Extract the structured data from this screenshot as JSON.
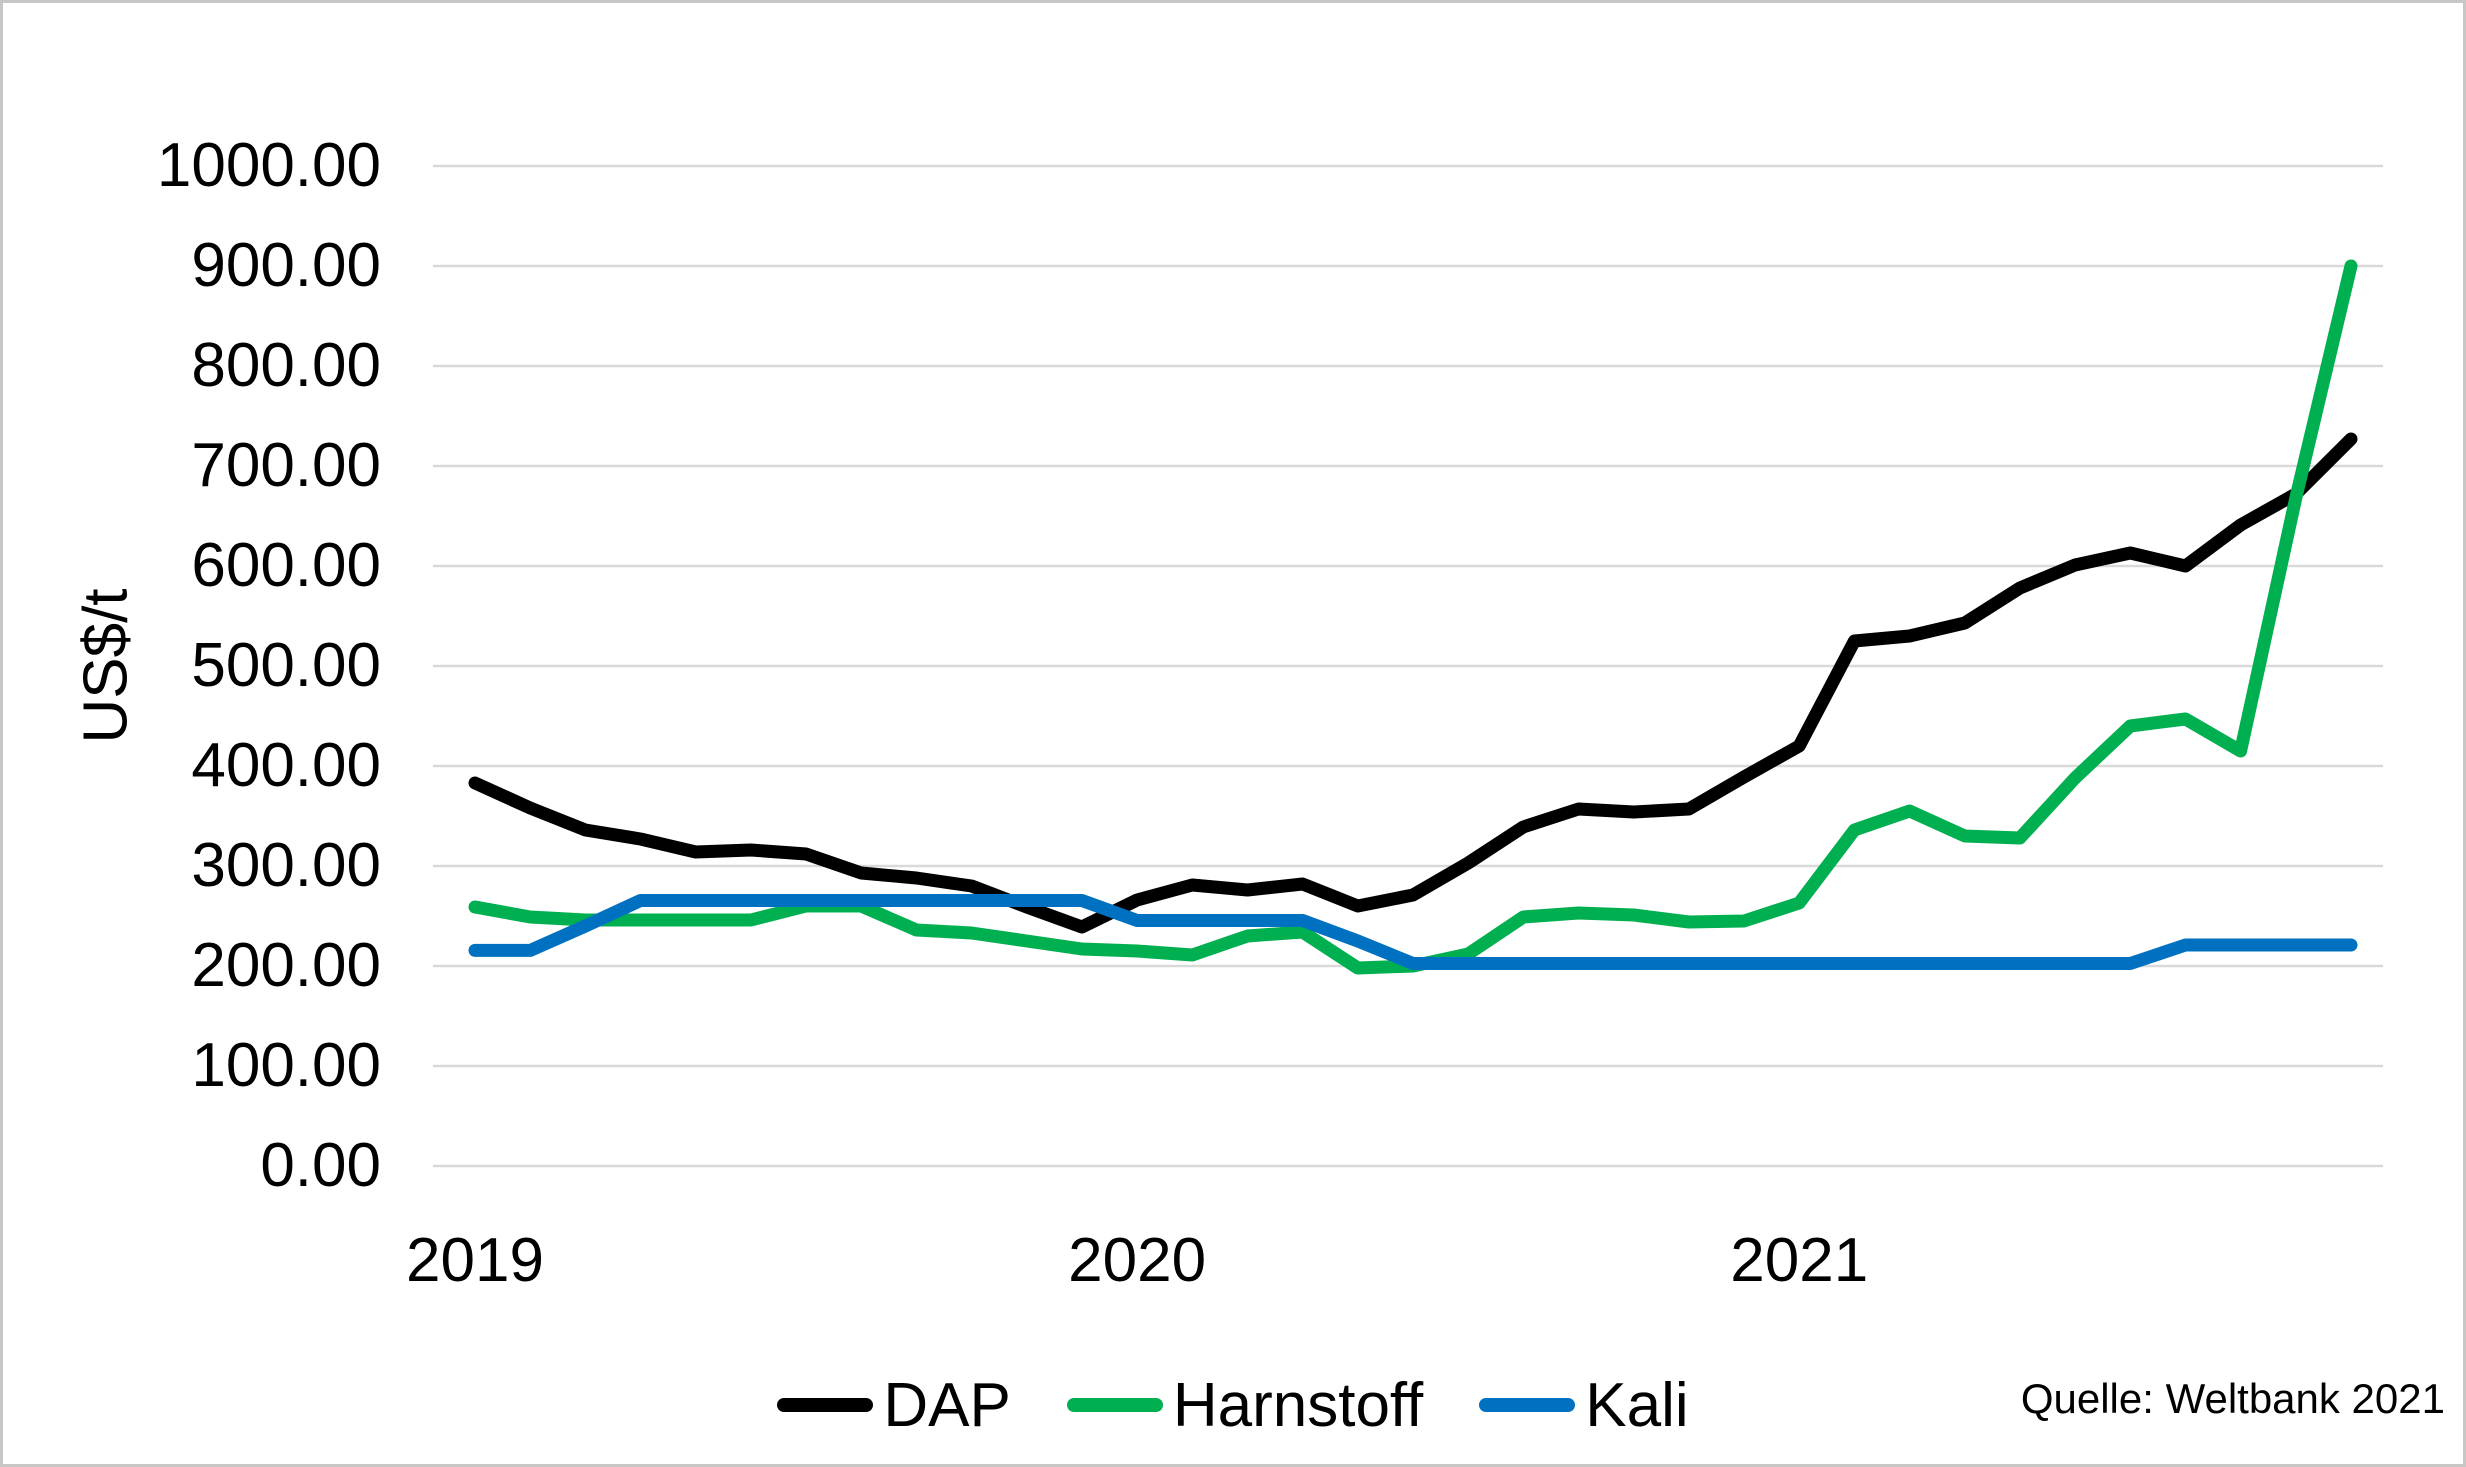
{
  "chart_data": {
    "type": "line",
    "title": "",
    "xlabel": "",
    "ylabel": "US$/t",
    "ylim": [
      0,
      1000
    ],
    "ytick_step": 100,
    "ytick_labels": [
      "1000.00",
      "900.00",
      "800.00",
      "700.00",
      "600.00",
      "500.00",
      "400.00",
      "300.00",
      "200.00",
      "100.00",
      "0.00"
    ],
    "grid": "horizontal",
    "legend_position": "bottom",
    "x_frequency": "monthly",
    "x_start": "2019-01",
    "x_end": "2021-11",
    "x_months": [
      "2019-01",
      "2019-02",
      "2019-03",
      "2019-04",
      "2019-05",
      "2019-06",
      "2019-07",
      "2019-08",
      "2019-09",
      "2019-10",
      "2019-11",
      "2019-12",
      "2020-01",
      "2020-02",
      "2020-03",
      "2020-04",
      "2020-05",
      "2020-06",
      "2020-07",
      "2020-08",
      "2020-09",
      "2020-10",
      "2020-11",
      "2020-12",
      "2021-01",
      "2021-02",
      "2021-03",
      "2021-04",
      "2021-05",
      "2021-06",
      "2021-07",
      "2021-08",
      "2021-09",
      "2021-10",
      "2021-11"
    ],
    "x_year_ticks": [
      {
        "label": "2019",
        "month_index": 0
      },
      {
        "label": "2020",
        "month_index": 12
      },
      {
        "label": "2021",
        "month_index": 24
      }
    ],
    "series": [
      {
        "name": "DAP",
        "color": "#000000",
        "values": [
          383,
          358,
          336,
          327,
          314,
          316,
          312,
          293,
          288,
          280,
          259,
          239,
          266,
          281,
          276,
          282,
          260,
          271,
          303,
          339,
          357,
          354,
          357,
          389,
          420,
          525,
          530,
          543,
          578,
          601,
          613,
          600,
          641,
          672,
          727
        ]
      },
      {
        "name": "Harnstoff",
        "color": "#00B050",
        "values": [
          259,
          249,
          246,
          246,
          246,
          246,
          260,
          260,
          236,
          233,
          225,
          217,
          215,
          211,
          230,
          234,
          198,
          200,
          212,
          249,
          253,
          251,
          244,
          245,
          263,
          336,
          355,
          330,
          328,
          388,
          440,
          447,
          415,
          668,
          900
        ]
      },
      {
        "name": "Kali",
        "color": "#0070C0",
        "values": [
          215.6,
          215.6,
          240,
          265.5,
          265.5,
          265.5,
          265.5,
          265.5,
          265.5,
          265.5,
          265.5,
          265.5,
          245.5,
          245.5,
          245.5,
          245.5,
          225,
          202.5,
          202.5,
          202.5,
          202.5,
          202.5,
          202.5,
          202.5,
          202.5,
          202.5,
          202.5,
          202.5,
          202.5,
          202.5,
          202.5,
          221,
          221,
          221,
          221
        ]
      }
    ],
    "source_note": "Quelle: Weltbank 2021"
  }
}
